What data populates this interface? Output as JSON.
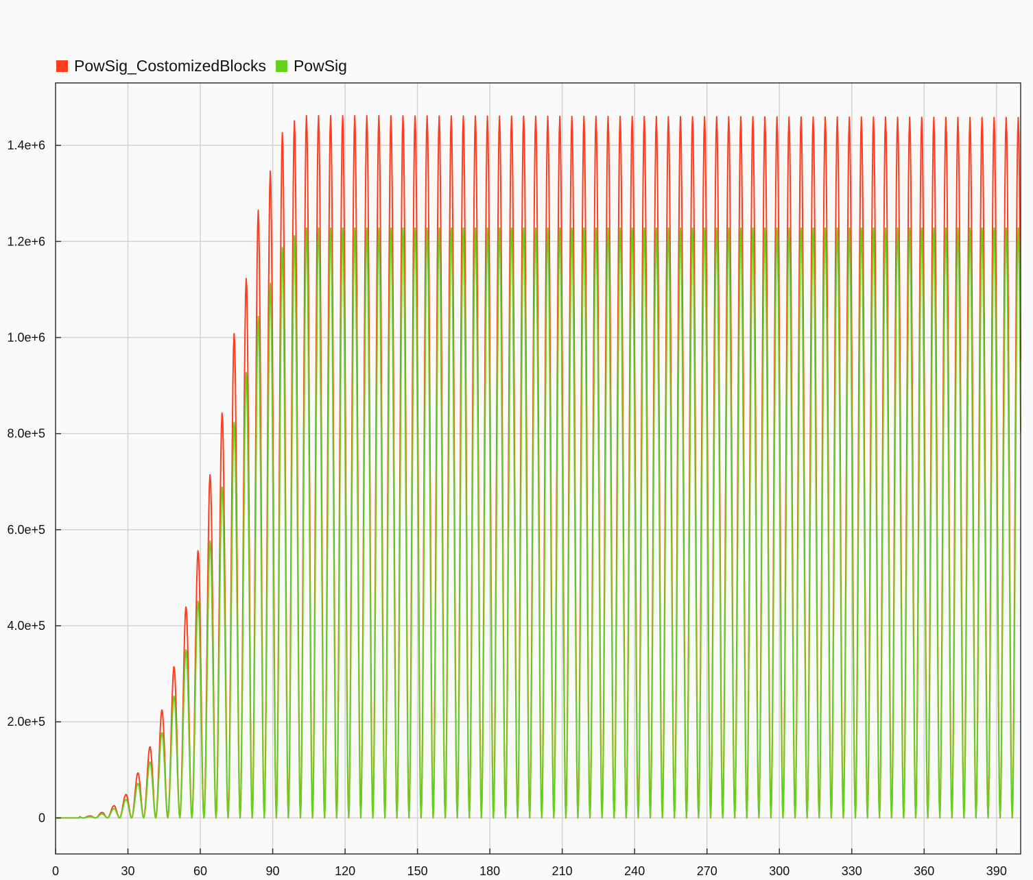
{
  "colors": {
    "background": "#fafafa",
    "plot_background": "#fafafa",
    "grid": "#d3d3d3",
    "axis": "#333333"
  },
  "legend": [
    {
      "name": "PowSig_CostomizedBlocks",
      "color": "#ff3d1f"
    },
    {
      "name": "PowSig",
      "color": "#66d11c"
    }
  ],
  "chart_data": {
    "type": "line",
    "title": "",
    "xlabel": "",
    "ylabel": "",
    "xlim": [
      0,
      400
    ],
    "ylim": [
      -75000,
      1530000
    ],
    "grid": true,
    "legend_position": "top-left",
    "x_ticks": [
      0,
      30,
      60,
      90,
      120,
      150,
      180,
      210,
      240,
      270,
      300,
      330,
      360,
      390
    ],
    "x_tick_labels": [
      "0",
      "30",
      "60",
      "90",
      "120",
      "150",
      "180",
      "210",
      "240",
      "270",
      "300",
      "330",
      "360",
      "390"
    ],
    "y_ticks": [
      0,
      200000,
      400000,
      600000,
      800000,
      1000000,
      1200000,
      1400000
    ],
    "y_tick_labels": [
      "0",
      "2.0e+5",
      "4.0e+5",
      "6.0e+5",
      "8.0e+5",
      "1.0e+6",
      "1.2e+6",
      "1.4e+6"
    ],
    "oscillation": {
      "period": 5,
      "start": 10,
      "ramp_end": 97,
      "first_peak": 14
    },
    "series": [
      {
        "name": "PowSig_CostomizedBlocks",
        "color": "#ff3d1f",
        "peak_envelope": [
          [
            14,
            4000
          ],
          [
            19,
            11000
          ],
          [
            24,
            25000
          ],
          [
            29,
            48000
          ],
          [
            33.5,
            88000
          ],
          [
            38.5,
            140000
          ],
          [
            43.5,
            216000
          ],
          [
            48.5,
            302000
          ],
          [
            53.5,
            428000
          ],
          [
            58.5,
            540000
          ],
          [
            63.5,
            702000
          ],
          [
            68.5,
            826000
          ],
          [
            73.5,
            997000
          ],
          [
            78.5,
            1108000
          ],
          [
            83.5,
            1257000
          ],
          [
            88.5,
            1338000
          ],
          [
            93.5,
            1424000
          ],
          [
            98.5,
            1450000
          ],
          [
            103.5,
            1462000
          ],
          [
            400,
            1458000
          ]
        ]
      },
      {
        "name": "PowSig",
        "color": "#66d11c",
        "peak_envelope": [
          [
            14,
            2500
          ],
          [
            19,
            8000
          ],
          [
            24,
            19000
          ],
          [
            29,
            38000
          ],
          [
            33.5,
            67000
          ],
          [
            38.5,
            110000
          ],
          [
            43.5,
            170000
          ],
          [
            48.5,
            244000
          ],
          [
            53.5,
            340000
          ],
          [
            58.5,
            438000
          ],
          [
            63.5,
            566000
          ],
          [
            68.5,
            675000
          ],
          [
            73.5,
            813000
          ],
          [
            78.5,
            915000
          ],
          [
            83.5,
            1037000
          ],
          [
            88.5,
            1105000
          ],
          [
            93.5,
            1185000
          ],
          [
            98.5,
            1210000
          ],
          [
            103.5,
            1228000
          ],
          [
            400,
            1228000
          ]
        ]
      }
    ]
  }
}
